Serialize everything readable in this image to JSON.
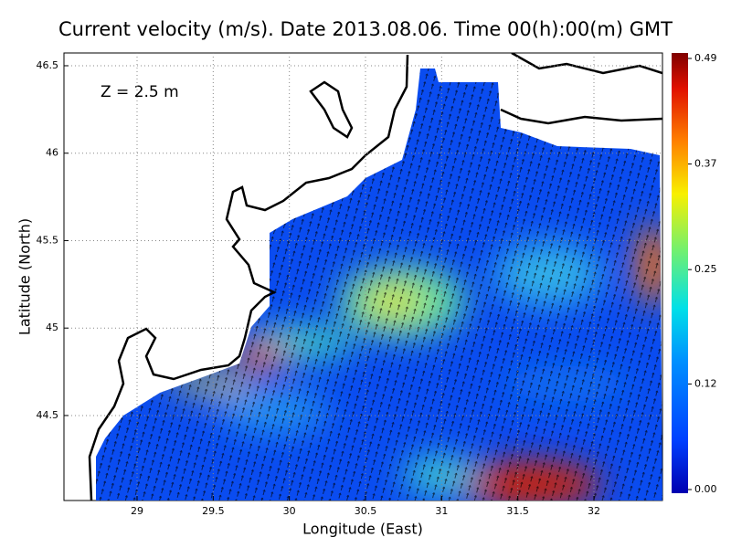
{
  "chart_data": {
    "type": "map",
    "title": "Current velocity (m/s). Date 2013.08.06. Time 00(h):00(m) GMT",
    "annotation": "Z = 2.5 m",
    "x_label": "Longitude (East)",
    "y_label": "Latitude (North)",
    "xlim": [
      28.52,
      32.45
    ],
    "ylim": [
      44.014,
      46.573
    ],
    "xticks": [
      29,
      29.5,
      30,
      30.5,
      31,
      31.5,
      32
    ],
    "yticks": [
      44.5,
      45,
      45.5,
      46,
      46.5
    ],
    "grid": true,
    "colorbar": {
      "lim": [
        0,
        0.49
      ],
      "ticks": [
        {
          "value": 0,
          "label": "0.00"
        },
        {
          "value": 0.12,
          "label": "0.12"
        },
        {
          "value": 0.25,
          "label": "0.25"
        },
        {
          "value": 0.37,
          "label": "0.37"
        },
        {
          "value": 0.49,
          "label": "0.49"
        }
      ]
    }
  }
}
